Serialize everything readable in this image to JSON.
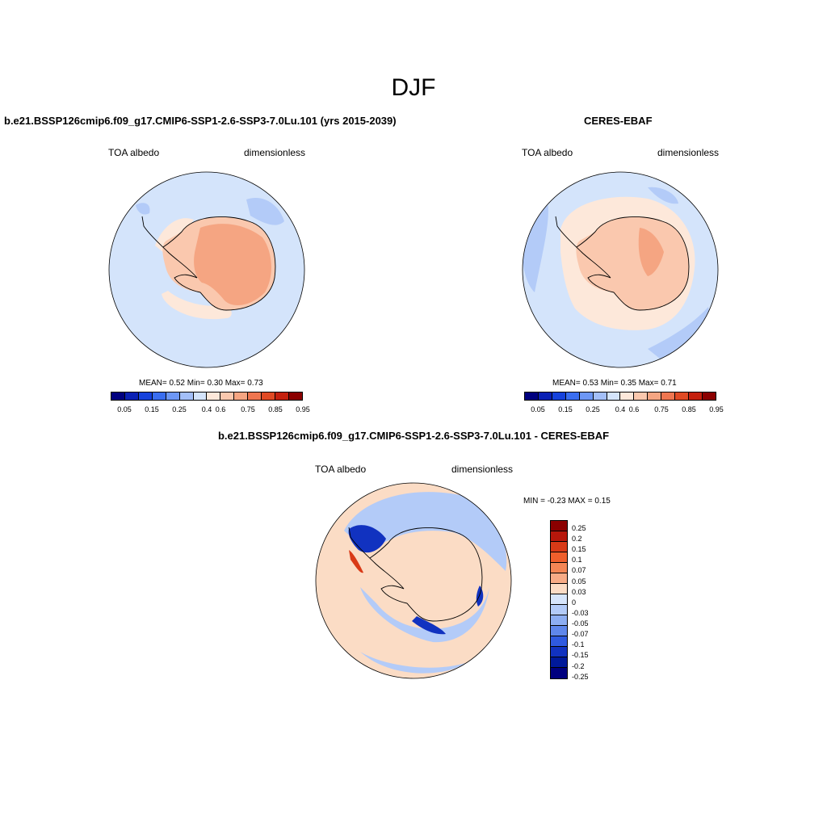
{
  "title": "DJF",
  "panels": [
    {
      "name": "model",
      "title": "b.e21.BSSP126cmip6.f09_g17.CMIP6-SSP1-2.6-SSP3-7.0Lu.101 (yrs 2015-2039)",
      "variable": "TOA albedo",
      "units": "dimensionless",
      "stats_text": "MEAN=   0.52  Min=   0.30  Max=   0.73",
      "stats": {
        "mean": 0.52,
        "min": 0.3,
        "max": 0.73
      }
    },
    {
      "name": "obs",
      "title": "CERES-EBAF",
      "variable": "TOA albedo",
      "units": "dimensionless",
      "stats_text": "MEAN=   0.53  Min=   0.35  Max=   0.71",
      "stats": {
        "mean": 0.53,
        "min": 0.35,
        "max": 0.71
      }
    },
    {
      "name": "diff",
      "title": "b.e21.BSSP126cmip6.f09_g17.CMIP6-SSP1-2.6-SSP3-7.0Lu.101 - CERES-EBAF",
      "variable": "TOA albedo",
      "units": "dimensionless",
      "stats_text": "MIN =  -0.23 MAX =   0.15",
      "stats": {
        "min": -0.23,
        "max": 0.15
      }
    }
  ],
  "colorbar_abs": {
    "colors": [
      "#00007f",
      "#0a20b4",
      "#1642dc",
      "#3a6ef0",
      "#6d97f5",
      "#a3bff8",
      "#d4e4fb",
      "#fde8da",
      "#fac8ae",
      "#f5a582",
      "#ef7650",
      "#e04a24",
      "#c4200e",
      "#8b0000"
    ],
    "labels": [
      "0.05",
      "0.15",
      "0.25",
      "0.4",
      "0.6",
      "0.75",
      "0.85",
      "0.95"
    ]
  },
  "colorbar_diff": {
    "colors": [
      "#8b0000",
      "#b7170b",
      "#d93a17",
      "#ef5f2c",
      "#f48655",
      "#f7ab86",
      "#fbdcc5",
      "#d6e5fb",
      "#b3cbf8",
      "#8daef2",
      "#5f87eb",
      "#2f5ae0",
      "#1132c0",
      "#00199a",
      "#00007f"
    ],
    "labels": [
      "0.25",
      "0.2",
      "0.15",
      "0.1",
      "0.07",
      "0.05",
      "0.03",
      "0",
      "-0.03",
      "-0.05",
      "-0.07",
      "-0.1",
      "-0.15",
      "-0.2",
      "-0.25"
    ]
  },
  "map_colors": {
    "ocean_abs": "#d4e4fb",
    "ocean_blue": "#b3cbf8",
    "land_model": "#f5a582",
    "land_model_edge": "#fac8ae",
    "land_obs": "#fac8ae",
    "land_obs_inner": "#f5a582",
    "sea_ice_pale": "#fde8da",
    "diff_pos": "#fbdcc5",
    "diff_neg": "#b3cbf8",
    "diff_strong_neg": "#1132c0",
    "diff_strong_pos": "#d93a17"
  }
}
